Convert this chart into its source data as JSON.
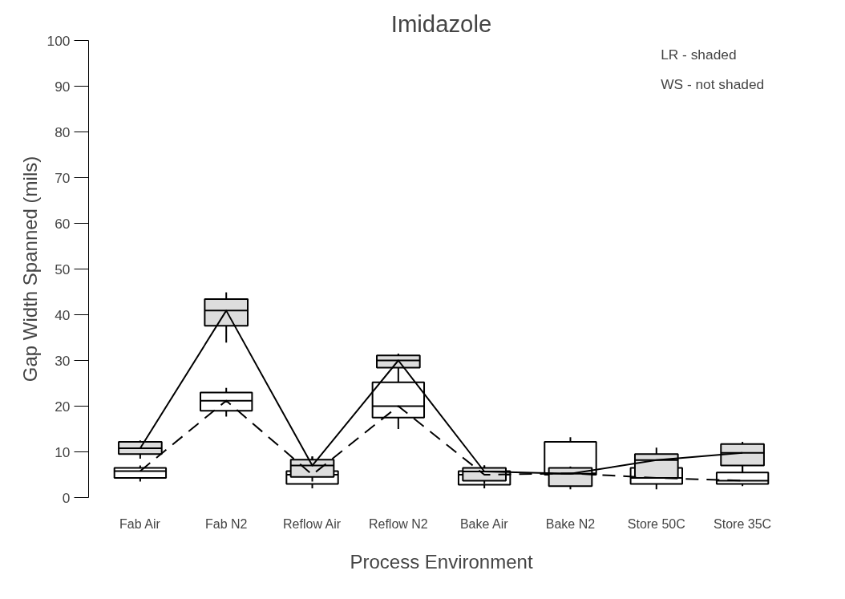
{
  "chart_data": {
    "type": "box",
    "title": "Imidazole",
    "xlabel": "Process Environment",
    "ylabel": "Gap Width Spanned (mils)",
    "categories": [
      "Fab Air",
      "Fab N2",
      "Reflow Air",
      "Reflow N2",
      "Bake Air",
      "Bake N2",
      "Store 50C",
      "Store 35C"
    ],
    "series": [
      {
        "color": "#ffffff",
        "boxes": [
          {
            "low": 3.5,
            "q1": 4.3,
            "median": 5.8,
            "q3": 6.5,
            "high": 7
          },
          {
            "low": 17.7,
            "q1": 19,
            "median": 21.2,
            "q3": 23,
            "high": 24
          },
          {
            "low": 2,
            "q1": 3,
            "median": 5,
            "q3": 5.8,
            "high": 9
          },
          {
            "low": 15,
            "q1": 17.5,
            "median": 20,
            "q3": 25.2,
            "high": 25.2
          },
          {
            "low": 2,
            "q1": 2.8,
            "median": 5,
            "q3": 5.8,
            "high": 7
          },
          {
            "low": 4.5,
            "q1": 5,
            "median": 5.3,
            "q3": 12.2,
            "high": 13.2
          },
          {
            "low": 1.8,
            "q1": 3,
            "median": 4.3,
            "q3": 6.5,
            "high": 7.5
          },
          {
            "low": 2.5,
            "q1": 3,
            "median": 3.7,
            "q3": 5.5,
            "high": 7
          }
        ]
      },
      {
        "color": "#dddddd",
        "boxes": [
          {
            "low": 8.5,
            "q1": 9.5,
            "median": 10.8,
            "q3": 12.2,
            "high": 12.5
          },
          {
            "low": 33.9,
            "q1": 37.6,
            "median": 40.9,
            "q3": 43.4,
            "high": 44.9
          },
          {
            "low": 3.5,
            "q1": 4.5,
            "median": 7,
            "q3": 8.3,
            "high": 9
          },
          {
            "low": 25.2,
            "q1": 28.4,
            "median": 30,
            "q3": 31.1,
            "high": 31.5
          },
          {
            "low": 3,
            "q1": 3.7,
            "median": 5.7,
            "q3": 6.5,
            "high": 7
          },
          {
            "low": 1.8,
            "q1": 2.5,
            "median": 5.2,
            "q3": 6.5,
            "high": 6.8
          },
          {
            "low": 4.3,
            "q1": 4.3,
            "median": 8.2,
            "q3": 9.5,
            "high": 10.9
          },
          {
            "low": 5.5,
            "q1": 7,
            "median": 9.8,
            "q3": 11.7,
            "high": 12.2
          }
        ]
      },
      {
        "type": "line",
        "color": "#000000",
        "line_style": "dashed",
        "values": [
          5.8,
          21.2,
          5,
          20,
          5,
          5.3,
          4.3,
          3.7
        ]
      },
      {
        "type": "line",
        "color": "#000000",
        "line_style": "solid",
        "values": [
          10.8,
          40.9,
          7,
          30,
          5.7,
          5.2,
          8.2,
          9.8
        ]
      }
    ],
    "ylim": [
      0,
      100
    ],
    "yticks": [
      0,
      10,
      20,
      30,
      40,
      50,
      60,
      70,
      80,
      90,
      100
    ],
    "annotations": [
      "LR - shaded",
      "WS - not shaded"
    ]
  }
}
